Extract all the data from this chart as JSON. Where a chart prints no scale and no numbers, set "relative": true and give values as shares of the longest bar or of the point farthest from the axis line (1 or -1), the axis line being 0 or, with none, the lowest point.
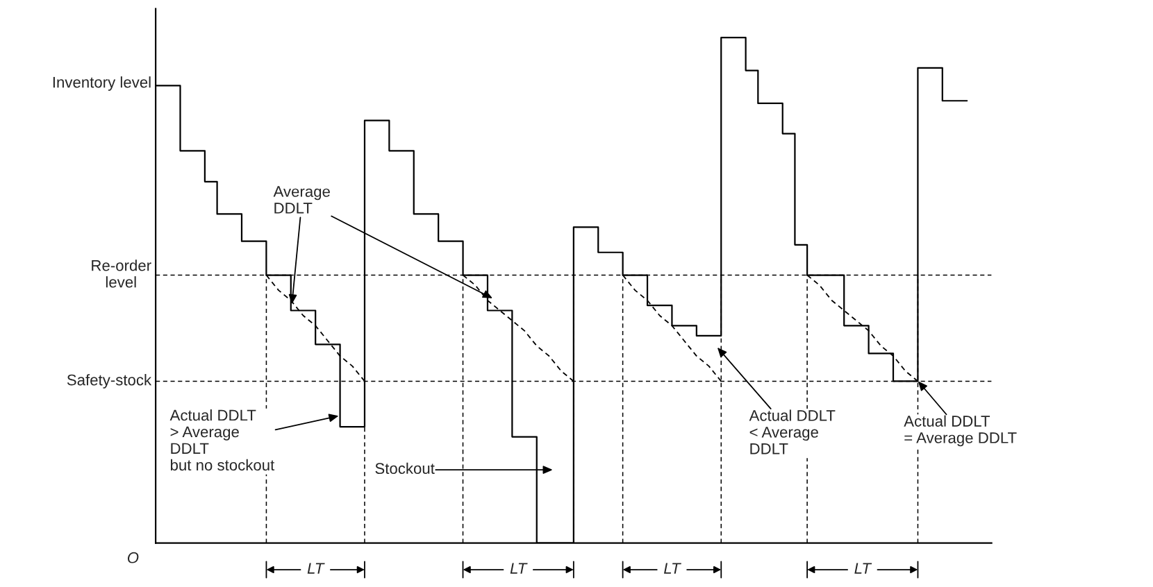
{
  "chart_data": {
    "type": "step",
    "relative": true,
    "ylabel": "Inventory level",
    "grid": false,
    "categories": [
      null,
      null,
      null,
      null,
      null,
      null,
      null,
      null,
      null,
      null,
      null,
      null,
      null,
      null,
      null,
      null,
      null,
      null,
      null,
      null,
      null,
      null,
      null,
      null,
      null,
      null,
      null,
      null,
      null,
      null,
      null,
      null,
      null,
      null,
      null,
      null,
      null,
      null,
      null,
      null,
      null,
      null,
      null,
      null,
      null,
      null,
      null,
      null,
      null,
      null,
      null,
      null,
      null,
      null,
      null,
      null,
      null,
      null,
      null,
      null,
      null,
      null,
      null,
      null,
      null,
      null,
      null
    ],
    "series": [
      {
        "color": "#000000",
        "values": [
          0.905,
          0.905,
          0.776,
          0.776,
          0.715,
          0.651,
          0.651,
          0.597,
          0.597,
          0.53,
          0.53,
          0.46,
          0.46,
          0.393,
          0.393,
          0.23,
          0.23,
          0.836,
          0.836,
          0.776,
          0.776,
          0.651,
          0.651,
          0.597,
          0.597,
          0.53,
          0.53,
          0.46,
          0.46,
          0.21,
          0.21,
          0,
          0,
          0,
          0.625,
          0.625,
          0.575,
          0.575,
          0.53,
          0.53,
          0.47,
          0.47,
          0.43,
          0.43,
          0.41,
          0.41,
          1.0,
          1.0,
          0.935,
          0.87,
          0.87,
          0.81,
          0.59,
          0.53,
          0.53,
          0.53,
          0.43,
          0.43,
          0.375,
          0.375,
          0.32,
          0.32,
          0.94,
          0.94,
          0.875,
          0.875,
          0.875
        ]
      },
      {
        "type": "line",
        "line_style": "dashed",
        "color": "#000000",
        "values": [
          null,
          null,
          null,
          null,
          null,
          null,
          null,
          null,
          null,
          0.53,
          0.5,
          0.48,
          0.45,
          0.43,
          0.4,
          0.37,
          0.35,
          0.32,
          null,
          null,
          null,
          null,
          null,
          null,
          null,
          null,
          null,
          null,
          null,
          null,
          null,
          null,
          null,
          null,
          null,
          null,
          null,
          null,
          null,
          null,
          null,
          null,
          null,
          null,
          null,
          null,
          null,
          null,
          null,
          null,
          null,
          null,
          null,
          null,
          null,
          null,
          null,
          null,
          null,
          null,
          null,
          null,
          null,
          null,
          null,
          null,
          null
        ]
      },
      {
        "type": "line",
        "line_style": "dashed",
        "color": "#000000",
        "values": [
          null,
          null,
          null,
          null,
          null,
          null,
          null,
          null,
          null,
          null,
          null,
          null,
          null,
          null,
          null,
          null,
          null,
          null,
          null,
          null,
          null,
          null,
          null,
          null,
          null,
          0.53,
          0.51,
          0.48,
          0.46,
          0.44,
          0.42,
          0.39,
          0.37,
          0.34,
          0.32,
          null,
          null,
          null,
          null,
          null,
          null,
          null,
          null,
          null,
          null,
          null,
          null,
          null,
          null,
          null,
          null,
          null,
          null,
          null,
          null,
          null,
          null,
          null,
          null,
          null,
          null,
          null,
          null,
          null,
          null,
          null,
          null
        ]
      },
      {
        "type": "line",
        "line_style": "dashed",
        "color": "#000000",
        "values": [
          null,
          null,
          null,
          null,
          null,
          null,
          null,
          null,
          null,
          null,
          null,
          null,
          null,
          null,
          null,
          null,
          null,
          null,
          null,
          null,
          null,
          null,
          null,
          null,
          null,
          null,
          null,
          null,
          null,
          null,
          null,
          null,
          null,
          null,
          null,
          null,
          null,
          null,
          0.53,
          0.5,
          0.48,
          0.45,
          0.43,
          0.4,
          0.37,
          0.35,
          0.32,
          null,
          null,
          null,
          null,
          null,
          null,
          null,
          null,
          null,
          null,
          null,
          null,
          null,
          null,
          null,
          null,
          null,
          null,
          null,
          null
        ]
      },
      {
        "type": "line",
        "line_style": "dashed",
        "color": "#000000",
        "values": [
          null,
          null,
          null,
          null,
          null,
          null,
          null,
          null,
          null,
          null,
          null,
          null,
          null,
          null,
          null,
          null,
          null,
          null,
          null,
          null,
          null,
          null,
          null,
          null,
          null,
          null,
          null,
          null,
          null,
          null,
          null,
          null,
          null,
          null,
          null,
          null,
          null,
          null,
          null,
          null,
          null,
          null,
          null,
          null,
          null,
          null,
          null,
          null,
          null,
          null,
          null,
          null,
          null,
          0.53,
          0.51,
          0.48,
          0.46,
          0.44,
          0.42,
          0.39,
          0.37,
          0.34,
          0.32,
          null,
          null,
          null,
          null
        ]
      }
    ],
    "ref_lines": [
      {
        "axis": "y",
        "value": 0.53,
        "label": "Re-order\nlevel",
        "line_style": "dashed",
        "color": "#000000"
      },
      {
        "axis": "y",
        "value": 0.32,
        "label": "Safety-stock",
        "line_style": "dashed",
        "color": "#000000"
      }
    ],
    "annotations": [
      "Average\nDDLT",
      "Actual DDLT\n> Average\nDDLT\nbut no stockout",
      "Stockout",
      "Actual DDLT\n< Average\nDDLT",
      "Actual DDLT\n= Average DDLT",
      "O",
      "LT",
      "LT",
      "LT",
      "LT"
    ]
  }
}
